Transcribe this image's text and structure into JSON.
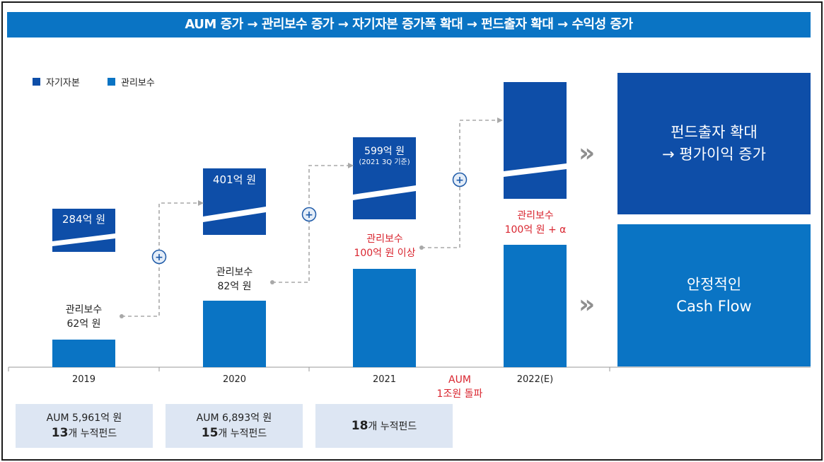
{
  "banner": "AUM 증가 → 관리보수 증가 → 자기자본 증가폭 확대 → 펀드출자 확대 → 수익성 증가",
  "legend": [
    {
      "name": "자기자본",
      "color": "#0e4ea8"
    },
    {
      "name": "관리보수",
      "color": "#0a74c4"
    }
  ],
  "chart_data": {
    "type": "bar",
    "categories": [
      "2019",
      "2020",
      "2021",
      "2022(E)"
    ],
    "series": [
      {
        "name": "자기자본",
        "labels": [
          "284억 원",
          "401억 원",
          "599억 원",
          ""
        ],
        "note_2021": "(2021 3Q 기준)"
      },
      {
        "name": "관리보수",
        "labels": [
          "관리보수\n62억 원",
          "관리보수\n82억 원",
          "관리보수\n100억 원 이상",
          "관리보수\n100억 원 + α"
        ]
      }
    ],
    "annotation": "AUM\n1조원 돌파"
  },
  "texts": {
    "equity_2019": "284억 원",
    "equity_2020": "401억 원",
    "equity_2021": "599억 원",
    "equity_2021_note": "(2021 3Q 기준)",
    "fee_2019_a": "관리보수",
    "fee_2019_b": "62억 원",
    "fee_2020_a": "관리보수",
    "fee_2020_b": "82억 원",
    "fee_2021_a": "관리보수",
    "fee_2021_b": "100억 원 이상",
    "fee_2022_a": "관리보수",
    "fee_2022_b": "100억 원 + α",
    "aum_a": "AUM",
    "aum_b": "1조원 돌파"
  },
  "boxes": [
    {
      "line1": "AUM 5,961억 원",
      "big": "13",
      "suffix": "개 누적펀드"
    },
    {
      "line1": "AUM 6,893억 원",
      "big": "15",
      "suffix": "개 누적펀드"
    },
    {
      "line1": "",
      "big": "18",
      "suffix": "개 누적펀드"
    }
  ],
  "panels": {
    "top_line1": "펀드출자 확대",
    "top_line2": "→ 평가이익 증가",
    "bottom_line1": "안정적인",
    "bottom_line2": "Cash Flow"
  },
  "chevron": "»",
  "plus": "+"
}
